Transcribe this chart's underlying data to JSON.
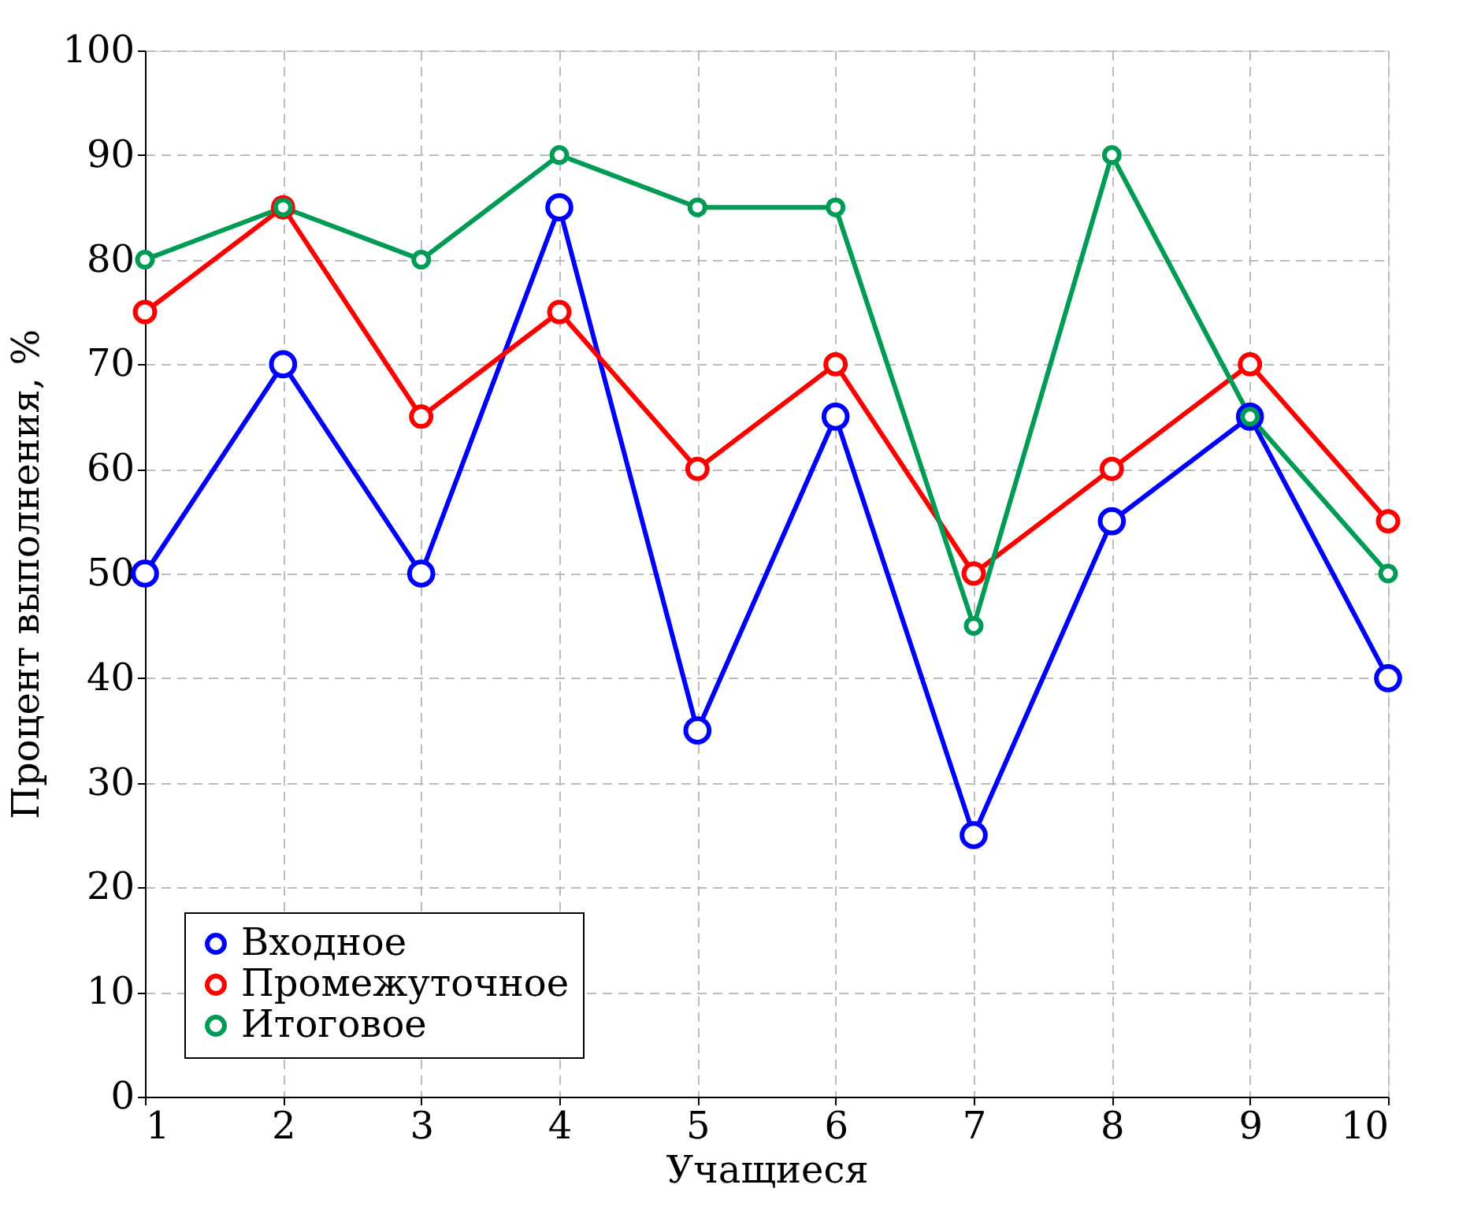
{
  "chart_data": {
    "type": "line",
    "xlabel": "Учащиеся",
    "ylabel": "Процент выполнения, %",
    "x": [
      1,
      2,
      3,
      4,
      5,
      6,
      7,
      8,
      9,
      10
    ],
    "series": [
      {
        "name": "Входное",
        "color": "#0000ff",
        "values": [
          50,
          70,
          50,
          85,
          35,
          65,
          25,
          55,
          65,
          40
        ]
      },
      {
        "name": "Промежуточное",
        "color": "#ff0000",
        "values": [
          75,
          85,
          65,
          75,
          60,
          70,
          50,
          60,
          70,
          55
        ]
      },
      {
        "name": "Итоговое",
        "color": "#009b55",
        "values": [
          80,
          85,
          80,
          90,
          85,
          85,
          45,
          90,
          65,
          50
        ]
      }
    ],
    "xlim": [
      1,
      10
    ],
    "xticks": [
      1,
      2,
      3,
      4,
      5,
      6,
      7,
      8,
      9,
      10
    ],
    "ylim": [
      0,
      100
    ],
    "yticks": [
      0,
      10,
      20,
      30,
      40,
      50,
      60,
      70,
      80,
      90,
      100
    ],
    "grid": true,
    "legend": "bottom left",
    "marker": "circle",
    "line_style": "solid"
  }
}
